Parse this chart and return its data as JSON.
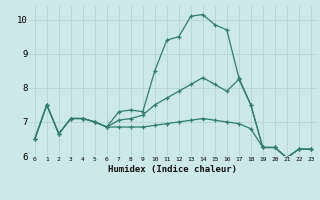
{
  "title": "",
  "xlabel": "Humidex (Indice chaleur)",
  "bg_color": "#cce8e8",
  "grid_color": "#b8d8d8",
  "line_color": "#2e7d6e",
  "xlim": [
    -0.5,
    23.5
  ],
  "ylim": [
    6.0,
    10.4
  ],
  "yticks": [
    6,
    7,
    8,
    9,
    10
  ],
  "xticks": [
    0,
    1,
    2,
    3,
    4,
    5,
    6,
    7,
    8,
    9,
    10,
    11,
    12,
    13,
    14,
    15,
    16,
    17,
    18,
    19,
    20,
    21,
    22,
    23
  ],
  "line1_x": [
    0,
    1,
    2,
    3,
    4,
    5,
    6,
    7,
    8,
    9,
    10,
    11,
    12,
    13,
    14,
    15,
    16,
    17,
    18,
    19,
    20,
    21,
    22,
    23
  ],
  "line1_y": [
    6.5,
    7.5,
    6.65,
    7.1,
    7.1,
    7.0,
    6.85,
    7.3,
    7.35,
    7.3,
    8.5,
    9.4,
    9.5,
    10.1,
    10.15,
    9.85,
    9.7,
    8.3,
    7.5,
    6.25,
    6.25,
    5.95,
    6.2,
    6.2
  ],
  "line2_x": [
    0,
    1,
    2,
    3,
    4,
    5,
    6,
    7,
    8,
    9,
    10,
    11,
    12,
    13,
    14,
    15,
    16,
    17,
    18,
    19,
    20,
    21,
    22,
    23
  ],
  "line2_y": [
    6.5,
    7.5,
    6.65,
    7.1,
    7.1,
    7.0,
    6.85,
    7.05,
    7.1,
    7.2,
    7.5,
    7.7,
    7.9,
    8.1,
    8.3,
    8.1,
    7.9,
    8.25,
    7.5,
    6.25,
    6.25,
    5.95,
    6.2,
    6.2
  ],
  "line3_x": [
    0,
    1,
    2,
    3,
    4,
    5,
    6,
    7,
    8,
    9,
    10,
    11,
    12,
    13,
    14,
    15,
    16,
    17,
    18,
    19,
    20,
    21,
    22,
    23
  ],
  "line3_y": [
    6.5,
    7.5,
    6.65,
    7.1,
    7.1,
    7.0,
    6.85,
    6.85,
    6.85,
    6.85,
    6.9,
    6.95,
    7.0,
    7.05,
    7.1,
    7.05,
    7.0,
    6.95,
    6.8,
    6.25,
    6.25,
    5.95,
    6.2,
    6.2
  ]
}
